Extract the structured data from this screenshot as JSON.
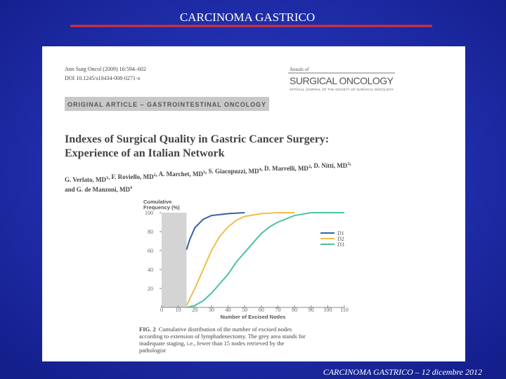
{
  "slide": {
    "title": "CARCINOMA GASTRICO",
    "footer": "CARCINOMA GASTRICO – 12 dicembre 2012"
  },
  "article": {
    "citation": [
      "Ann Surg Oncol (2009) 16:594–602",
      "DOI 10.1245/s10434-008-0271-x"
    ],
    "journal": {
      "prefix": "Annals of",
      "name": "SURGICAL ONCOLOGY",
      "subtitle": "OFFICIAL JOURNAL OF THE SOCIETY OF SURGICAL ONCOLOGY"
    },
    "section": "ORIGINAL ARTICLE – GASTROINTESTINAL ONCOLOGY",
    "title": [
      "Indexes of Surgical Quality in Gastric Cancer Surgery:",
      "Experience of an Italian Network"
    ],
    "authors": [
      [
        {
          "name": "G. Verlato, MD",
          "sup": "1"
        },
        {
          "name": ", F. Roviello, MD",
          "sup": "2"
        },
        {
          "name": ", A. Marchet, MD",
          "sup": "3"
        },
        {
          "name": ", S. Giacopuzzi, MD",
          "sup": "4"
        },
        {
          "name": ", D. Marrelli, MD",
          "sup": "2"
        },
        {
          "name": ", D. Nitti, MD",
          "sup": "3"
        },
        {
          "name": ",",
          "sup": ""
        }
      ],
      [
        {
          "name": "and G. de Manzoni, MD",
          "sup": "4"
        }
      ]
    ],
    "figure": {
      "type": "line",
      "ylabel": [
        "Cumulative",
        "Frequency (%)"
      ],
      "xlabel": "Number of Excised Nodes",
      "xlim": [
        0,
        110
      ],
      "xticks": [
        0,
        10,
        20,
        30,
        40,
        50,
        60,
        70,
        80,
        90,
        100,
        110
      ],
      "ylim": [
        0,
        100
      ],
      "yticks": [
        20,
        40,
        60,
        80,
        100
      ],
      "shaded": [
        0,
        15
      ],
      "series": [
        {
          "name": "D1",
          "color": "#3a5fa8",
          "x": [
            15,
            17,
            20,
            25,
            30,
            35,
            40,
            50
          ],
          "values": [
            61,
            72,
            84,
            93,
            97,
            98,
            99,
            100
          ]
        },
        {
          "name": "D2",
          "color": "#f2bd4a",
          "x": [
            15,
            20,
            25,
            30,
            35,
            40,
            45,
            50,
            60,
            70,
            80
          ],
          "values": [
            2,
            20,
            40,
            60,
            75,
            85,
            92,
            96,
            99,
            100,
            100
          ]
        },
        {
          "name": "D3",
          "color": "#4cc39e",
          "x": [
            15,
            20,
            25,
            30,
            35,
            40,
            45,
            50,
            55,
            60,
            65,
            70,
            80,
            90,
            110
          ],
          "values": [
            0,
            2,
            7,
            15,
            25,
            35,
            48,
            58,
            68,
            78,
            85,
            90,
            97,
            100,
            100
          ]
        }
      ]
    },
    "caption": {
      "label": "FIG. 2",
      "lines": [
        "Cumulative distribution of the number of excised nodes",
        "according to extension of lymphadenectomy. The grey area stands for",
        "inadequate staging, i.e., fewer than 15 nodes retrieved by the",
        "pathologist"
      ]
    }
  }
}
